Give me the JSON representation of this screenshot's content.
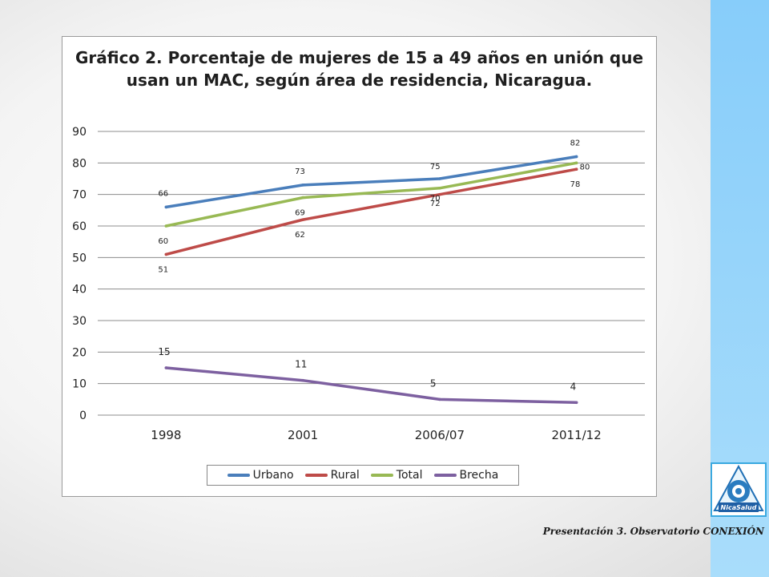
{
  "chart_data": {
    "type": "line",
    "title": "Gráfico 2. Porcentaje de mujeres de 15 a 49 años en unión que usan un MAC, según área de residencia, Nicaragua.",
    "categories": [
      "1998",
      "2001",
      "2006/07",
      "2011/12"
    ],
    "ylim": [
      0,
      90
    ],
    "yticks": [
      "0",
      "10",
      "20",
      "30",
      "40",
      "50",
      "60",
      "70",
      "80",
      "90"
    ],
    "grid": true,
    "legend_position": "bottom",
    "series": [
      {
        "name": "Urbano",
        "color": "#4a7ebb",
        "values": [
          66,
          73,
          75,
          82
        ],
        "labels": [
          "66",
          "73",
          "75",
          "82"
        ]
      },
      {
        "name": "Rural",
        "color": "#be4b48",
        "values": [
          51,
          62,
          70,
          78
        ],
        "labels": [
          "51",
          "62",
          "70",
          "78"
        ]
      },
      {
        "name": "Total",
        "color": "#98b954",
        "values": [
          60,
          69,
          72,
          80
        ],
        "labels": [
          "60",
          "69",
          "72",
          "80"
        ]
      },
      {
        "name": "Brecha",
        "color": "#7d60a0",
        "values": [
          15,
          11,
          5,
          4
        ],
        "labels": [
          "15",
          "11",
          "5",
          "4"
        ]
      }
    ]
  },
  "footer": {
    "text": "Presentación 3. Observatorio CONEXIÓN"
  },
  "logo": {
    "text": "NicaSalud"
  }
}
